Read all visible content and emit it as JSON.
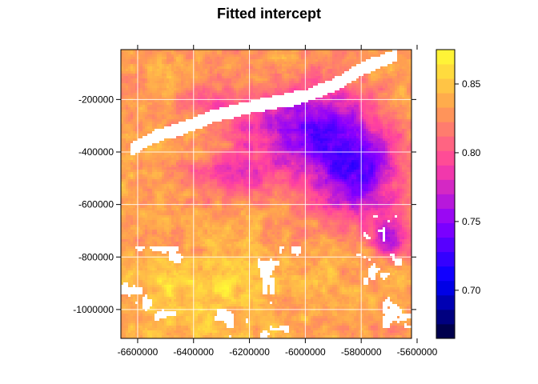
{
  "chart_data": {
    "type": "heatmap",
    "title": "Fitted intercept",
    "xlabel": "",
    "ylabel": "",
    "xlim": [
      -6660000,
      -5620000
    ],
    "ylim": [
      -1110000,
      -10000
    ],
    "x_ticks": [
      -6600000,
      -6400000,
      -6200000,
      -6000000,
      -5800000,
      -5600000
    ],
    "x_tick_labels": [
      "-6600000",
      "-6400000",
      "-6200000",
      "-6000000",
      "-5800000",
      "-5600000"
    ],
    "y_ticks": [
      -200000,
      -400000,
      -600000,
      -800000,
      -1000000
    ],
    "y_tick_labels": [
      "-200000",
      "-400000",
      "-600000",
      "-800000",
      "-1000000"
    ],
    "colorbar": {
      "range": [
        0.665,
        0.875
      ],
      "ticks": [
        0.7,
        0.75,
        0.8,
        0.85
      ],
      "tick_labels": [
        "0.70",
        "0.75",
        "0.80",
        "0.85"
      ],
      "colors": [
        "#000033",
        "#0000ff",
        "#8b00ff",
        "#ff40a0",
        "#ffa050",
        "#ffff33"
      ]
    },
    "missing_color": "#ffffff",
    "grid": true,
    "legend_position": "right"
  }
}
